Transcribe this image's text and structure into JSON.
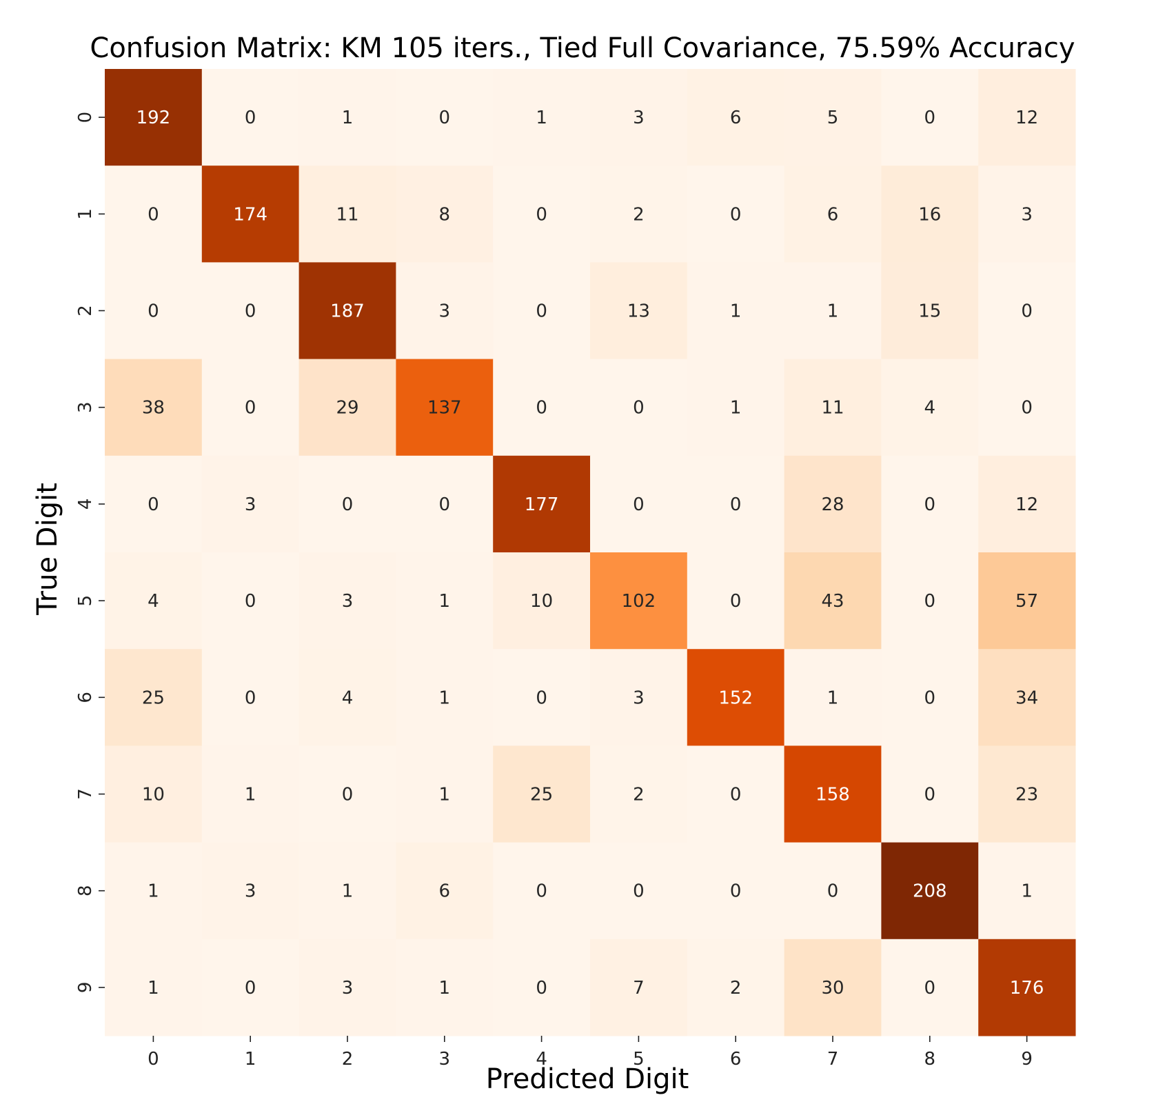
{
  "chart_data": {
    "type": "heatmap",
    "title": "Confusion Matrix: KM 105 iters., Tied Full Covariance, 75.59% Accuracy",
    "xlabel": "Predicted Digit",
    "ylabel": "True Digit",
    "x_categories": [
      "0",
      "1",
      "2",
      "3",
      "4",
      "5",
      "6",
      "7",
      "8",
      "9"
    ],
    "y_categories": [
      "0",
      "1",
      "2",
      "3",
      "4",
      "5",
      "6",
      "7",
      "8",
      "9"
    ],
    "values": [
      [
        192,
        0,
        1,
        0,
        1,
        3,
        6,
        5,
        0,
        12
      ],
      [
        0,
        174,
        11,
        8,
        0,
        2,
        0,
        6,
        16,
        3
      ],
      [
        0,
        0,
        187,
        3,
        0,
        13,
        1,
        1,
        15,
        0
      ],
      [
        38,
        0,
        29,
        137,
        0,
        0,
        1,
        11,
        4,
        0
      ],
      [
        0,
        3,
        0,
        0,
        177,
        0,
        0,
        28,
        0,
        12
      ],
      [
        4,
        0,
        3,
        1,
        10,
        102,
        0,
        43,
        0,
        57
      ],
      [
        25,
        0,
        4,
        1,
        0,
        3,
        152,
        1,
        0,
        34
      ],
      [
        10,
        1,
        0,
        1,
        25,
        2,
        0,
        158,
        0,
        23
      ],
      [
        1,
        3,
        1,
        6,
        0,
        0,
        0,
        0,
        208,
        1
      ],
      [
        1,
        0,
        3,
        1,
        0,
        7,
        2,
        30,
        0,
        176
      ]
    ],
    "value_range": [
      0,
      208
    ],
    "colormap": "Oranges",
    "color_low": "#fff5eb",
    "color_high": "#7f2704",
    "colorbar": false,
    "grid": false
  }
}
